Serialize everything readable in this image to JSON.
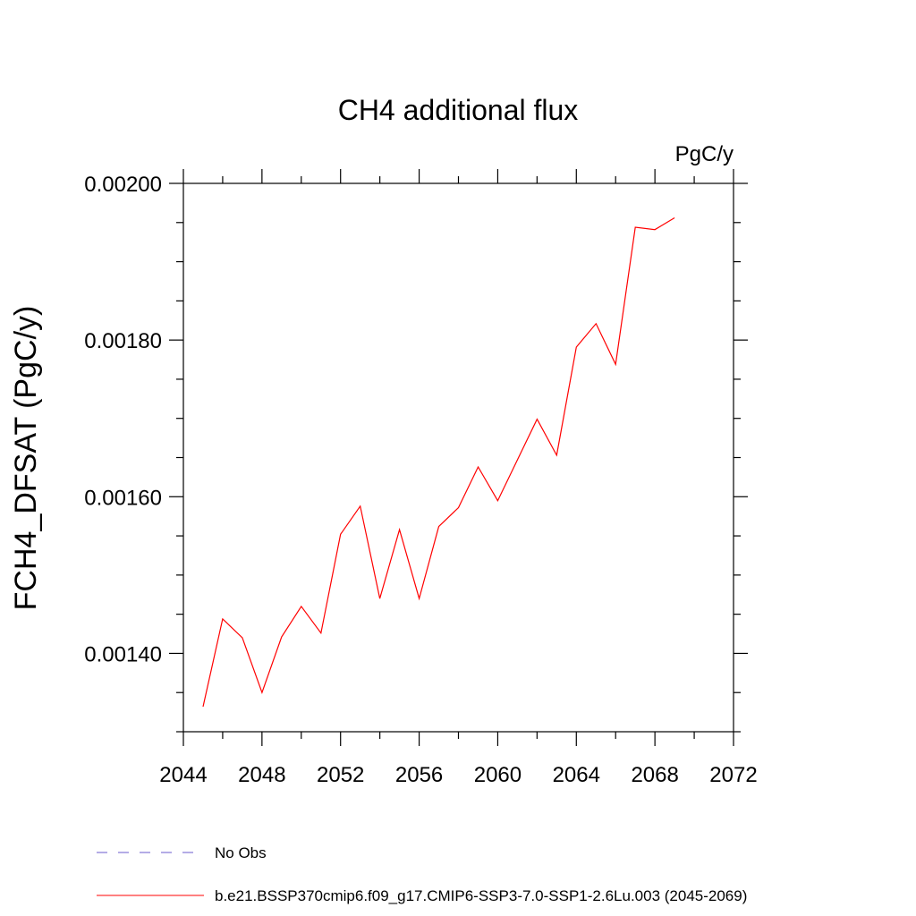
{
  "chart_data": {
    "type": "line",
    "title": "CH4 additional flux",
    "units_label": "PgC/y",
    "xlabel": "",
    "ylabel": "FCH4_DFSAT  (PgC/y)",
    "xlim": [
      2044,
      2072
    ],
    "ylim": [
      0.0013,
      0.002
    ],
    "x_ticks": [
      2044,
      2048,
      2052,
      2056,
      2060,
      2064,
      2068,
      2072
    ],
    "x_tick_labels": [
      "2044",
      "2048",
      "2052",
      "2056",
      "2060",
      "2064",
      "2068",
      "2072"
    ],
    "y_ticks": [
      0.0014,
      0.0016,
      0.0018,
      0.002
    ],
    "y_tick_labels": [
      "0.00140",
      "0.00160",
      "0.00180",
      "0.00200"
    ],
    "grid": false,
    "legend_position": "bottom-left",
    "series": [
      {
        "name": "b.e21.BSSP370cmip6.f09_g17.CMIP6-SSP3-7.0-SSP1-2.6Lu.003 (2045-2069)",
        "color": "#ff0000",
        "style": "solid",
        "x": [
          2045,
          2046,
          2047,
          2048,
          2049,
          2050,
          2051,
          2052,
          2053,
          2054,
          2055,
          2056,
          2057,
          2058,
          2059,
          2060,
          2061,
          2062,
          2063,
          2064,
          2065,
          2066,
          2067,
          2068,
          2069
        ],
        "y": [
          0.001332,
          0.001444,
          0.00142,
          0.00135,
          0.001421,
          0.00146,
          0.001426,
          0.001552,
          0.001588,
          0.00147,
          0.001558,
          0.00147,
          0.001562,
          0.001586,
          0.001638,
          0.001595,
          0.001647,
          0.001699,
          0.001653,
          0.001791,
          0.001821,
          0.001769,
          0.001944,
          0.001941,
          0.001956
        ]
      },
      {
        "name": "No Obs",
        "color": "#6a5acd",
        "style": "dashed",
        "x": [],
        "y": []
      }
    ]
  }
}
